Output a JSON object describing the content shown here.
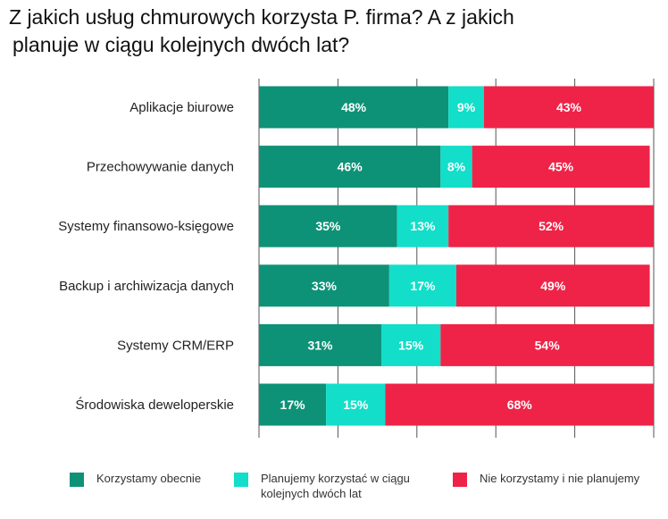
{
  "title_line1": "Z jakich usług chmurowych korzysta P. firma? A z jakich",
  "title_line2": "planuje w ciągu kolejnych dwóch lat?",
  "colors": {
    "current": "#0e9277",
    "planned": "#12dec9",
    "none": "#ef2347",
    "grid": "#555555",
    "text": "#222222"
  },
  "chart_data": {
    "type": "bar",
    "orientation": "horizontal",
    "stacked": true,
    "title": "Z jakich usług chmurowych korzysta P. firma? A z jakich planuje w ciągu kolejnych dwóch lat?",
    "categories": [
      "Aplikacje biurowe",
      "Przechowywanie danych",
      "Systemy finansowo-księgowe",
      "Backup i archiwizacja danych",
      "Systemy CRM/ERP",
      "Środowiska deweloperskie"
    ],
    "series": [
      {
        "name": "Korzystamy obecnie",
        "values": [
          48,
          46,
          35,
          33,
          31,
          17
        ]
      },
      {
        "name": "Planujemy korzystać w ciągu kolejnych dwóch lat",
        "values": [
          9,
          8,
          13,
          17,
          15,
          15
        ]
      },
      {
        "name": "Nie korzystamy i nie planujemy",
        "values": [
          43,
          45,
          52,
          49,
          54,
          68
        ]
      }
    ],
    "xlim": [
      0,
      100
    ],
    "grid": true,
    "legend": "bottom",
    "value_suffix": "%"
  },
  "legend": {
    "item1": "Korzystamy obecnie",
    "item2_line1": "Planujemy korzystać w ciągu",
    "item2_line2": "kolejnych dwóch lat",
    "item3": "Nie korzystamy i nie planujemy"
  }
}
